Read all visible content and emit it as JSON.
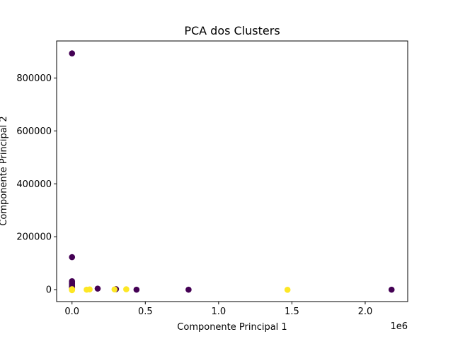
{
  "chart_data": {
    "type": "scatter",
    "title": "PCA dos Clusters",
    "xlabel": "Componente Principal 1",
    "ylabel": "Componente Principal 2",
    "x_offset_label": "1e6",
    "xlim": [
      -105000,
      2290000
    ],
    "ylim": [
      -45000,
      940000
    ],
    "x_ticks": [
      0,
      500000,
      1000000,
      1500000,
      2000000
    ],
    "x_tick_labels": [
      "0.0",
      "0.5",
      "1.0",
      "1.5",
      "2.0"
    ],
    "y_ticks": [
      0,
      200000,
      400000,
      600000,
      800000
    ],
    "y_tick_labels": [
      "0",
      "200000",
      "400000",
      "600000",
      "800000"
    ],
    "grid": false,
    "colors": {
      "cluster_0": "#440154",
      "cluster_1": "#fde725"
    },
    "series": [
      {
        "color_key": "cluster_0",
        "points": [
          [
            0,
            893000
          ],
          [
            0,
            123000
          ],
          [
            0,
            32000
          ],
          [
            0,
            27000
          ],
          [
            0,
            22000
          ],
          [
            0,
            17000
          ],
          [
            0,
            12000
          ],
          [
            0,
            8000
          ],
          [
            0,
            4000
          ],
          [
            0,
            1000
          ],
          [
            175000,
            4000
          ],
          [
            300000,
            2000
          ],
          [
            440000,
            0
          ],
          [
            795000,
            0
          ],
          [
            2180000,
            0
          ]
        ]
      },
      {
        "color_key": "cluster_1",
        "points": [
          [
            0,
            2000
          ],
          [
            0,
            0
          ],
          [
            0,
            -2000
          ],
          [
            100000,
            0
          ],
          [
            120000,
            1000
          ],
          [
            290000,
            1000
          ],
          [
            370000,
            1500
          ],
          [
            1470000,
            -500
          ]
        ]
      }
    ]
  }
}
